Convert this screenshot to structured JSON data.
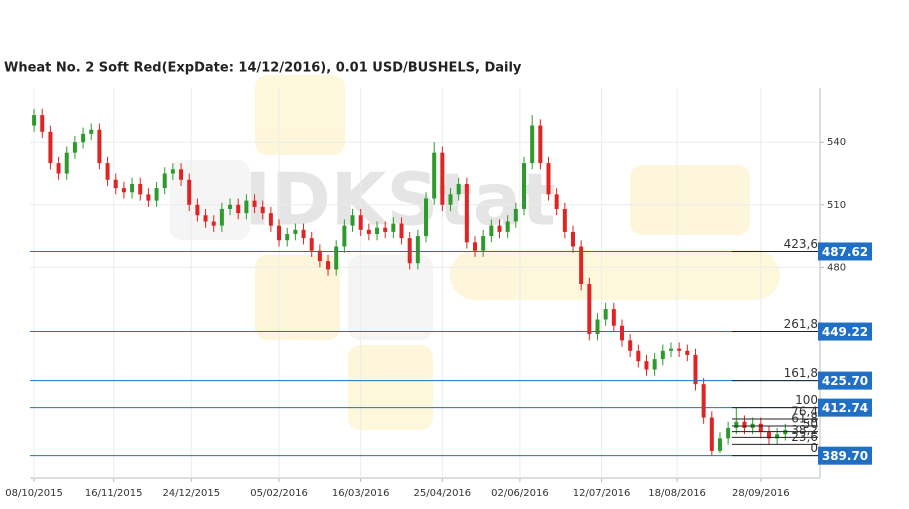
{
  "chart_data": {
    "type": "candlestick",
    "title": "Wheat  No. 2 Soft Red(ExpDate: 14/12/2016), 0.01 USD/BUSHELS, Daily",
    "watermark": "IDKStat",
    "up_color": "#2e9a2e",
    "down_color": "#e02424",
    "level_color": "#1f6fc5",
    "xlim": [
      "06/10/2015",
      "27/10/2016"
    ],
    "xticks": [
      "08/10/2015",
      "16/11/2015",
      "24/12/2015",
      "05/02/2016",
      "16/03/2016",
      "25/04/2016",
      "02/06/2016",
      "12/07/2016",
      "18/08/2016",
      "28/09/2016"
    ],
    "ylim": [
      379,
      566
    ],
    "yticks": [
      480,
      510,
      540
    ],
    "grid": true,
    "x": [
      "08/10/2015",
      "12/10/2015",
      "16/10/2015",
      "20/10/2015",
      "24/10/2015",
      "28/10/2015",
      "01/11/2015",
      "05/11/2015",
      "09/11/2015",
      "13/11/2015",
      "17/11/2015",
      "21/11/2015",
      "25/11/2015",
      "29/11/2015",
      "03/12/2015",
      "07/12/2015",
      "11/12/2015",
      "15/12/2015",
      "19/12/2015",
      "23/12/2015",
      "27/12/2015",
      "31/12/2015",
      "04/01/2016",
      "08/01/2016",
      "12/01/2016",
      "16/01/2016",
      "20/01/2016",
      "24/01/2016",
      "28/01/2016",
      "01/02/2016",
      "05/02/2016",
      "09/02/2016",
      "13/02/2016",
      "17/02/2016",
      "21/02/2016",
      "25/02/2016",
      "29/02/2016",
      "04/03/2016",
      "08/03/2016",
      "12/03/2016",
      "16/03/2016",
      "20/03/2016",
      "24/03/2016",
      "28/03/2016",
      "01/04/2016",
      "05/04/2016",
      "09/04/2016",
      "13/04/2016",
      "17/04/2016",
      "21/04/2016",
      "25/04/2016",
      "29/04/2016",
      "03/05/2016",
      "07/05/2016",
      "11/05/2016",
      "15/05/2016",
      "19/05/2016",
      "23/05/2016",
      "27/05/2016",
      "31/05/2016",
      "04/06/2016",
      "08/06/2016",
      "12/06/2016",
      "16/06/2016",
      "20/06/2016",
      "24/06/2016",
      "28/06/2016",
      "02/07/2016",
      "06/07/2016",
      "10/07/2016",
      "14/07/2016",
      "18/07/2016",
      "22/07/2016",
      "26/07/2016",
      "30/07/2016",
      "03/08/2016",
      "07/08/2016",
      "11/08/2016",
      "15/08/2016",
      "19/08/2016",
      "23/08/2016",
      "27/08/2016",
      "31/08/2016",
      "04/09/2016",
      "08/09/2016",
      "12/09/2016",
      "16/09/2016",
      "20/09/2016",
      "24/09/2016",
      "28/09/2016",
      "02/10/2016",
      "06/10/2016",
      "10/10/2016"
    ],
    "open": [
      548,
      553,
      545,
      530,
      525,
      535,
      540,
      544,
      546,
      530,
      522,
      518,
      516,
      520,
      515,
      512,
      518,
      525,
      527,
      522,
      510,
      505,
      502,
      500,
      508,
      510,
      506,
      512,
      509,
      506,
      500,
      493,
      496,
      498,
      494,
      488,
      483,
      479,
      490,
      500,
      505,
      498,
      496,
      499,
      497,
      501,
      494,
      482,
      495,
      513,
      535,
      510,
      515,
      520,
      492,
      488,
      495,
      500,
      497,
      502,
      508,
      530,
      548,
      530,
      515,
      508,
      497,
      490,
      472,
      448,
      455,
      460,
      452,
      445,
      440,
      435,
      431,
      436,
      440,
      441,
      440,
      438,
      424,
      408,
      392,
      398,
      403,
      406,
      403,
      405,
      401,
      398,
      400
    ],
    "high": [
      556,
      556,
      548,
      533,
      538,
      543,
      547,
      549,
      549,
      533,
      525,
      521,
      523,
      523,
      518,
      521,
      528,
      530,
      530,
      525,
      513,
      508,
      505,
      511,
      513,
      513,
      515,
      515,
      512,
      509,
      503,
      499,
      501,
      501,
      497,
      491,
      486,
      493,
      503,
      508,
      508,
      501,
      502,
      502,
      504,
      504,
      497,
      498,
      516,
      540,
      538,
      518,
      523,
      523,
      495,
      498,
      503,
      503,
      505,
      511,
      533,
      553,
      551,
      533,
      518,
      511,
      500,
      493,
      475,
      458,
      463,
      463,
      455,
      448,
      443,
      438,
      439,
      443,
      444,
      444,
      443,
      441,
      427,
      411,
      401,
      406,
      412.74,
      409,
      408,
      408,
      404,
      403,
      405
    ],
    "low": [
      545,
      542,
      527,
      522,
      522,
      532,
      537,
      541,
      527,
      519,
      515,
      513,
      513,
      512,
      509,
      509,
      515,
      522,
      519,
      507,
      502,
      499,
      497,
      497,
      505,
      503,
      503,
      506,
      503,
      497,
      490,
      490,
      493,
      491,
      485,
      480,
      476,
      476,
      487,
      497,
      495,
      493,
      493,
      494,
      494,
      491,
      479,
      479,
      492,
      510,
      507,
      507,
      512,
      489,
      485,
      485,
      492,
      494,
      494,
      499,
      505,
      527,
      527,
      512,
      505,
      494,
      487,
      469,
      445,
      445,
      452,
      449,
      442,
      437,
      432,
      428,
      428,
      433,
      437,
      437,
      435,
      421,
      405,
      389.7,
      391,
      395,
      400,
      400,
      400,
      398,
      395,
      395,
      397
    ],
    "close": [
      553,
      545,
      530,
      525,
      535,
      540,
      544,
      546,
      530,
      522,
      518,
      516,
      520,
      515,
      512,
      518,
      525,
      527,
      522,
      510,
      505,
      502,
      500,
      508,
      510,
      506,
      512,
      509,
      506,
      500,
      493,
      496,
      498,
      494,
      488,
      483,
      479,
      490,
      500,
      505,
      498,
      496,
      499,
      497,
      501,
      494,
      482,
      495,
      513,
      535,
      510,
      515,
      520,
      492,
      488,
      495,
      500,
      497,
      502,
      508,
      530,
      548,
      530,
      515,
      508,
      497,
      490,
      472,
      448,
      455,
      460,
      452,
      445,
      440,
      435,
      431,
      436,
      440,
      441,
      440,
      438,
      424,
      408,
      392,
      398,
      403,
      406,
      403,
      405,
      401,
      398,
      400,
      402
    ],
    "fib_levels": [
      {
        "ratio": "423,6",
        "price": 487.62,
        "price_label": "487.62"
      },
      {
        "ratio": "261,8",
        "price": 449.22,
        "price_label": "449.22"
      },
      {
        "ratio": "161,8",
        "price": 425.7,
        "price_label": "425.70"
      },
      {
        "ratio": 100,
        "price": 412.74,
        "price_label": "412.74"
      },
      {
        "ratio": "76,4",
        "price": 407.3
      },
      {
        "ratio": "61,8",
        "price": 403.94
      },
      {
        "ratio": 50,
        "price": 401.22
      },
      {
        "ratio": "38,2",
        "price": 398.5
      },
      {
        "ratio": "23,6",
        "price": 395.14
      },
      {
        "ratio": 0,
        "price": 389.7,
        "price_label": "389.70"
      }
    ]
  }
}
